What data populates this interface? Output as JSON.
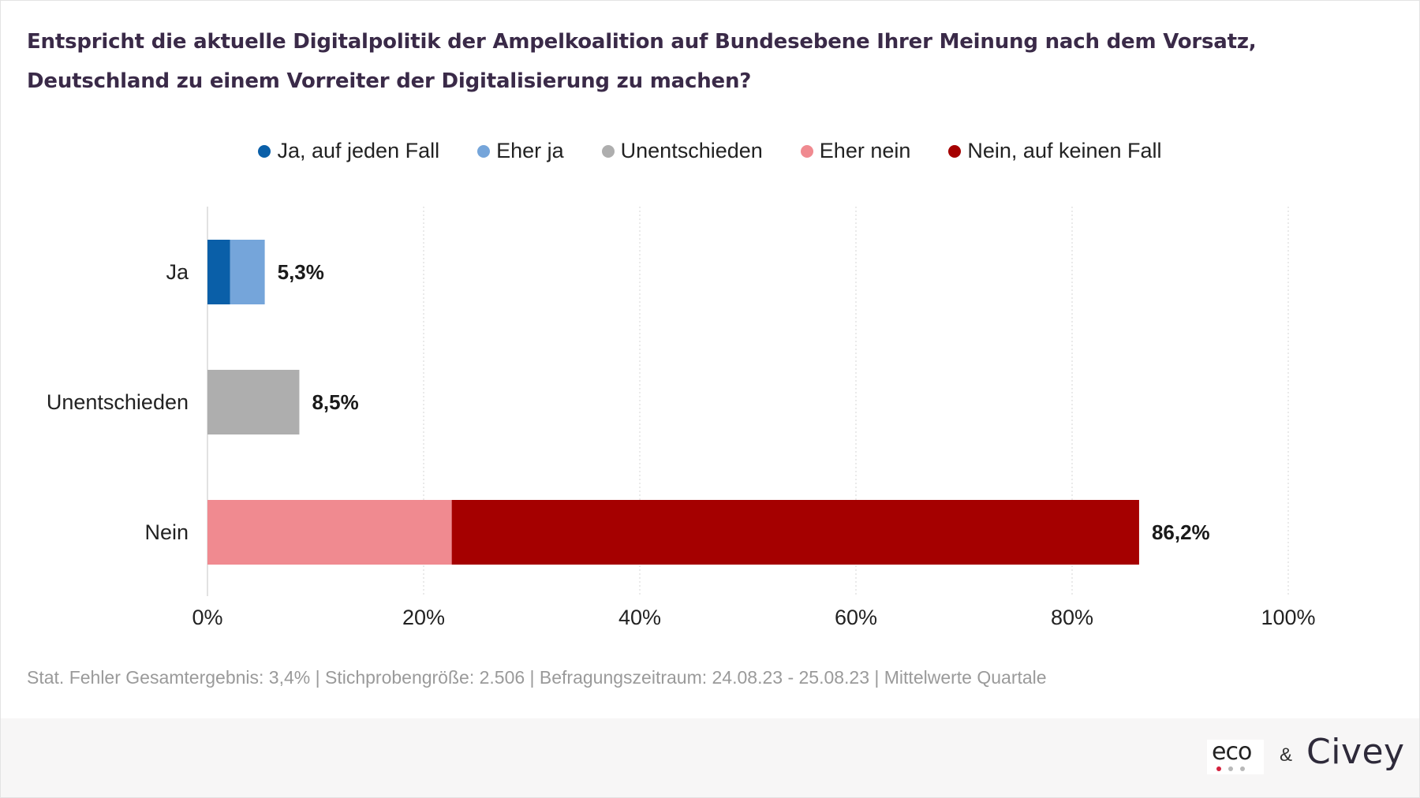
{
  "title": "Entspricht die aktuelle Digitalpolitik der Ampelkoalition auf Bundesebene Ihrer Meinung nach dem Vorsatz, Deutschland zu einem Vorreiter der Digitalisierung zu machen?",
  "legend": [
    {
      "label": "Ja, auf jeden Fall",
      "color": "#0a5fa8"
    },
    {
      "label": "Eher ja",
      "color": "#75a5da"
    },
    {
      "label": "Unentschieden",
      "color": "#aeaeae"
    },
    {
      "label": "Eher nein",
      "color": "#f08a90"
    },
    {
      "label": "Nein, auf keinen Fall",
      "color": "#a50000"
    }
  ],
  "chart_data": {
    "type": "bar",
    "orientation": "horizontal",
    "stacked": true,
    "categories": [
      "Ja",
      "Unentschieden",
      "Nein"
    ],
    "series": [
      {
        "name": "Ja, auf jeden Fall",
        "color": "#0a5fa8",
        "values": [
          2.1,
          0,
          0
        ]
      },
      {
        "name": "Eher ja",
        "color": "#75a5da",
        "values": [
          3.2,
          0,
          0
        ]
      },
      {
        "name": "Unentschieden",
        "color": "#aeaeae",
        "values": [
          0,
          8.5,
          0
        ]
      },
      {
        "name": "Eher nein",
        "color": "#f08a90",
        "values": [
          0,
          0,
          22.6
        ]
      },
      {
        "name": "Nein, auf keinen Fall",
        "color": "#a50000",
        "values": [
          0,
          0,
          63.6
        ]
      }
    ],
    "totals_labels": [
      "5,3%",
      "8,5%",
      "86,2%"
    ],
    "xlim": [
      0,
      100
    ],
    "xticks": [
      0,
      20,
      40,
      60,
      80,
      100
    ],
    "xtick_labels": [
      "0%",
      "20%",
      "40%",
      "60%",
      "80%",
      "100%"
    ],
    "grid": "vertical-dotted",
    "legend_position": "top-center"
  },
  "footnote": "Stat. Fehler Gesamtergebnis: 3,4% | Stichprobengröße: 2.506 | Befragungszeitraum: 24.08.23 - 25.08.23 | Mittelwerte Quartale",
  "footer": {
    "logo_eco": "eco",
    "ampersand": "&",
    "logo_civey": "Civey",
    "eco_dot_colors": [
      "#d4213d",
      "#b8b8b8",
      "#b8b8b8"
    ]
  }
}
